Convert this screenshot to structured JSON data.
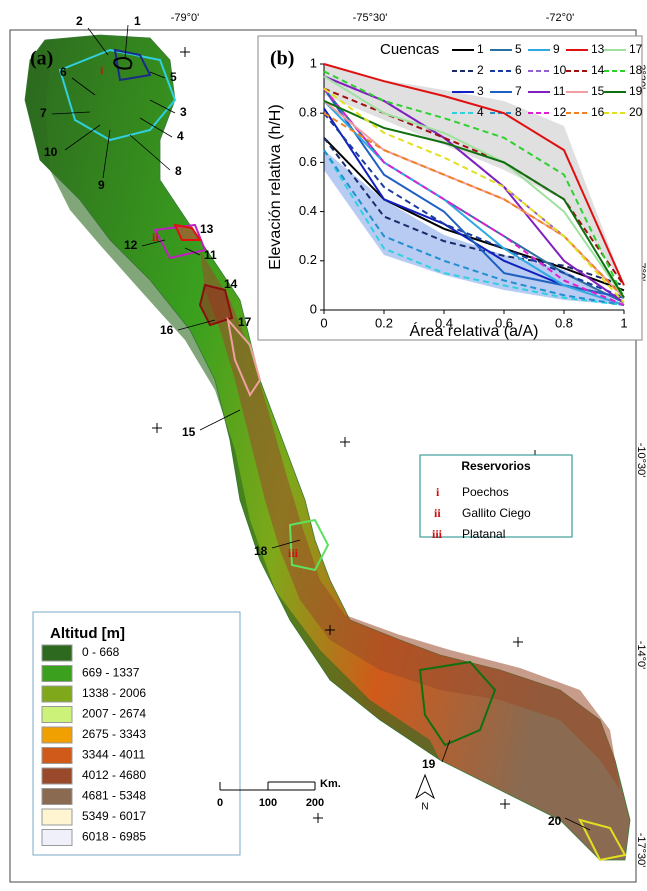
{
  "map": {
    "panel_label": "(a)",
    "lon_labels": [
      "-79°0'",
      "-75°30'",
      "-72°0'"
    ],
    "lat_labels": [
      "-3°30'",
      "-7°0'",
      "-10°30'",
      "-14°0'",
      "-17°30'"
    ],
    "basin_labels": [
      "1",
      "2",
      "3",
      "4",
      "5",
      "6",
      "7",
      "8",
      "9",
      "10",
      "11",
      "12",
      "13",
      "14",
      "15",
      "16",
      "17",
      "18",
      "19",
      "20"
    ],
    "reservoir_markers": [
      "i",
      "ii",
      "iii"
    ],
    "legend": {
      "title": "Altitud [m]",
      "classes": [
        {
          "label": "0 - 668",
          "color": "#2d6a1f"
        },
        {
          "label": "669 - 1337",
          "color": "#3aa01e"
        },
        {
          "label": "1338 - 2006",
          "color": "#7fa81a"
        },
        {
          "label": "2007 - 2674",
          "color": "#ccf27a"
        },
        {
          "label": "2675 - 3343",
          "color": "#f0a000"
        },
        {
          "label": "3344 - 4011",
          "color": "#d05a1a"
        },
        {
          "label": "4012 - 4680",
          "color": "#9a4a2a"
        },
        {
          "label": "4681 - 5348",
          "color": "#8a6a50"
        },
        {
          "label": "5349 - 6017",
          "color": "#fff5d0"
        },
        {
          "label": "6018 - 6985",
          "color": "#f0f0fa"
        }
      ]
    },
    "reservoirs": {
      "title": "Reservorios",
      "items": [
        {
          "marker": "i",
          "name": "Poechos"
        },
        {
          "marker": "ii",
          "name": "Gallito Ciego"
        },
        {
          "marker": "iii",
          "name": "Platanal"
        }
      ]
    },
    "scale": {
      "labels": [
        "0",
        "100",
        "200"
      ],
      "unit": "Km."
    },
    "north": "N"
  },
  "chart_data": {
    "type": "line",
    "panel_label": "(b)",
    "legend_title": "Cuencas",
    "x_label": "Área relativa (a/A)",
    "y_label": "Elevación relativa (h/H)",
    "x": [
      0,
      0.2,
      0.4,
      0.6,
      0.8,
      1
    ],
    "xlim": [
      0,
      1
    ],
    "ylim": [
      0,
      1
    ],
    "xticks": [
      0,
      0.2,
      0.4,
      0.6,
      0.8,
      1
    ],
    "yticks": [
      0,
      0.2,
      0.4,
      0.6,
      0.8,
      1
    ],
    "series": [
      {
        "name": "1",
        "color": "#000000",
        "dash": false,
        "values": [
          0.7,
          0.45,
          0.33,
          0.25,
          0.17,
          0.08
        ]
      },
      {
        "name": "2",
        "color": "#1a2a6a",
        "dash": true,
        "values": [
          0.7,
          0.38,
          0.28,
          0.22,
          0.18,
          0.1
        ]
      },
      {
        "name": "3",
        "color": "#1020c0",
        "dash": false,
        "values": [
          0.82,
          0.45,
          0.35,
          0.2,
          0.1,
          0.05
        ]
      },
      {
        "name": "4",
        "color": "#30d0e0",
        "dash": true,
        "values": [
          0.65,
          0.25,
          0.15,
          0.1,
          0.05,
          0.02
        ]
      },
      {
        "name": "5",
        "color": "#2a70a0",
        "dash": false,
        "values": [
          0.9,
          0.6,
          0.45,
          0.3,
          0.15,
          0.03
        ]
      },
      {
        "name": "6",
        "color": "#1a3aa0",
        "dash": true,
        "values": [
          0.8,
          0.5,
          0.35,
          0.25,
          0.15,
          0.05
        ]
      },
      {
        "name": "7",
        "color": "#2060c0",
        "dash": false,
        "values": [
          0.9,
          0.55,
          0.4,
          0.15,
          0.1,
          0.05
        ]
      },
      {
        "name": "8",
        "color": "#2090d0",
        "dash": true,
        "values": [
          0.65,
          0.3,
          0.2,
          0.12,
          0.06,
          0.02
        ]
      },
      {
        "name": "9",
        "color": "#30a8e0",
        "dash": false,
        "values": [
          0.85,
          0.6,
          0.45,
          0.25,
          0.1,
          0.02
        ]
      },
      {
        "name": "10",
        "color": "#9060d0",
        "dash": true,
        "values": [
          0.95,
          0.85,
          0.7,
          0.5,
          0.3,
          0.05
        ]
      },
      {
        "name": "11",
        "color": "#8020c0",
        "dash": false,
        "values": [
          0.95,
          0.85,
          0.7,
          0.5,
          0.2,
          0.03
        ]
      },
      {
        "name": "12",
        "color": "#e020d0",
        "dash": true,
        "values": [
          0.9,
          0.6,
          0.45,
          0.3,
          0.12,
          0.02
        ]
      },
      {
        "name": "13",
        "color": "#e01010",
        "dash": false,
        "values": [
          1,
          0.93,
          0.87,
          0.8,
          0.65,
          0.1
        ]
      },
      {
        "name": "14",
        "color": "#a01010",
        "dash": true,
        "values": [
          0.9,
          0.8,
          0.7,
          0.6,
          0.45,
          0.1
        ]
      },
      {
        "name": "15",
        "color": "#f0a0a0",
        "dash": false,
        "values": [
          0.85,
          0.65,
          0.55,
          0.45,
          0.3,
          0.05
        ]
      },
      {
        "name": "16",
        "color": "#f08020",
        "dash": true,
        "values": [
          0.8,
          0.65,
          0.55,
          0.45,
          0.3,
          0.05
        ]
      },
      {
        "name": "17",
        "color": "#a0e0a0",
        "dash": false,
        "values": [
          0.95,
          0.8,
          0.72,
          0.6,
          0.4,
          0.05
        ]
      },
      {
        "name": "18",
        "color": "#30d030",
        "dash": true,
        "values": [
          0.97,
          0.85,
          0.78,
          0.7,
          0.55,
          0.05
        ]
      },
      {
        "name": "19",
        "color": "#107010",
        "dash": false,
        "values": [
          0.85,
          0.74,
          0.68,
          0.6,
          0.45,
          0.05
        ]
      },
      {
        "name": "20",
        "color": "#e0e020",
        "dash": true,
        "values": [
          0.9,
          0.72,
          0.62,
          0.5,
          0.3,
          0.03
        ]
      }
    ]
  }
}
